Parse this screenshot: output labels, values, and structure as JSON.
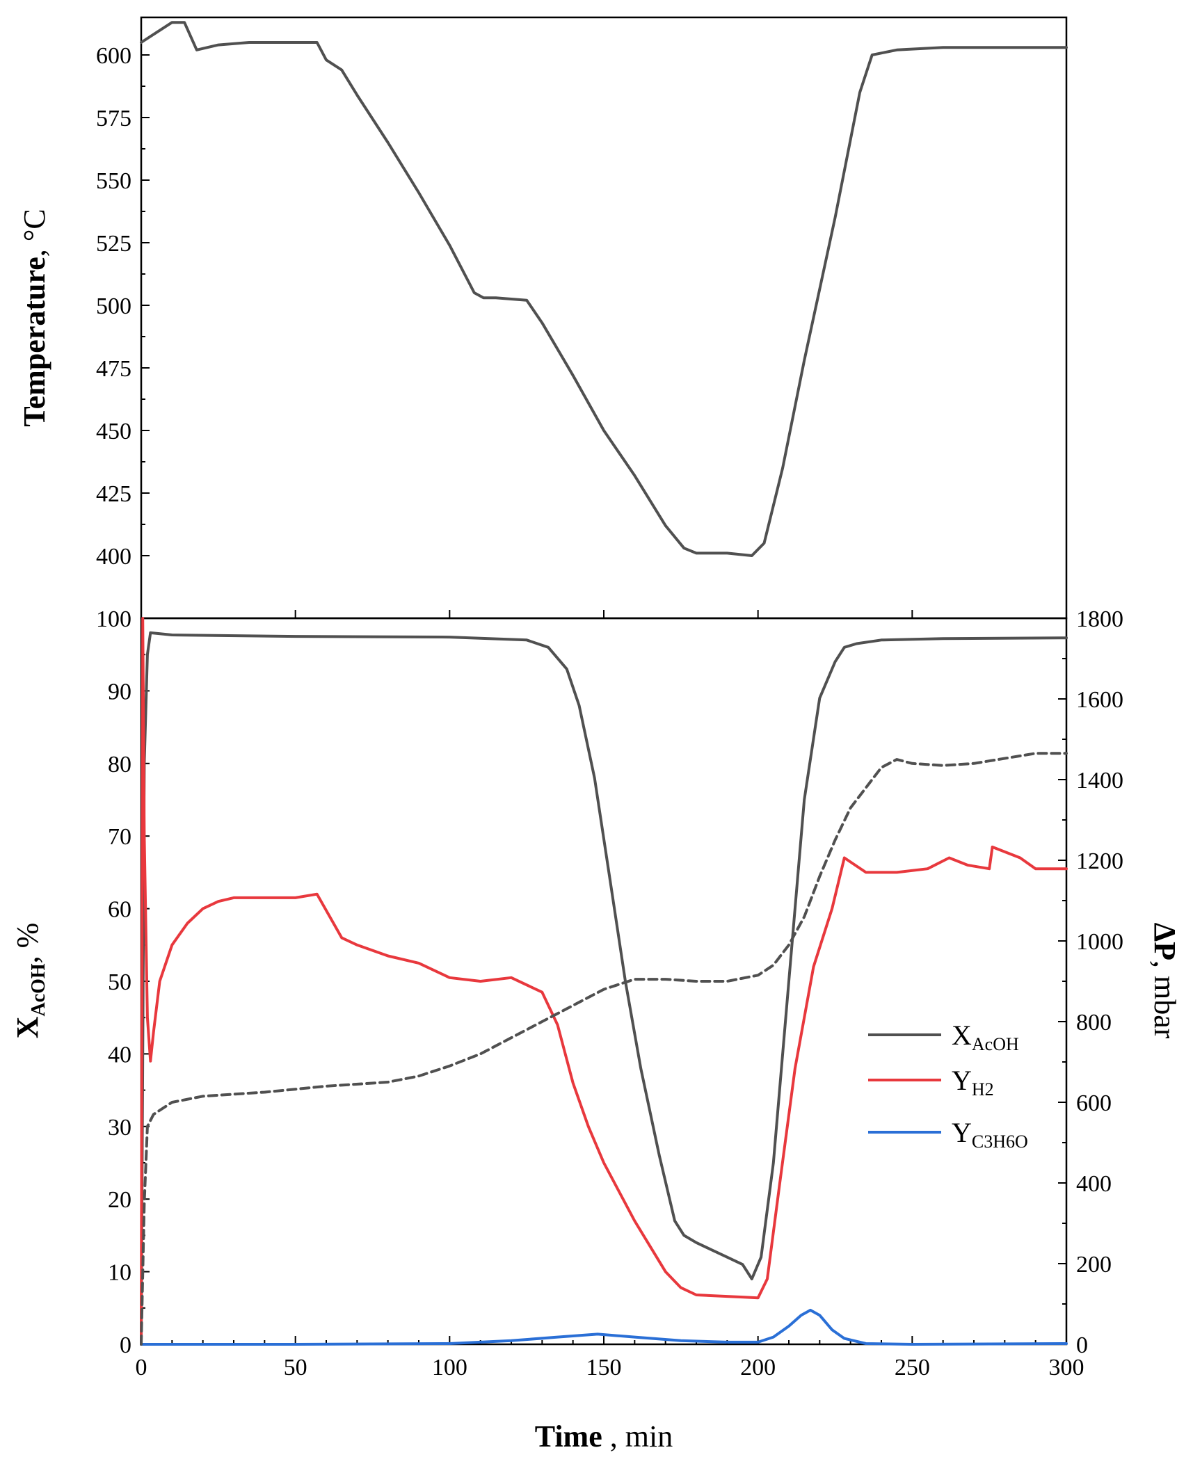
{
  "chart_data": [
    {
      "type": "line",
      "panel": "top",
      "ylabel": {
        "main": "Temperature",
        "unit": ", °C"
      },
      "xlim": [
        0,
        300
      ],
      "ylim": [
        375,
        615
      ],
      "yticks": [
        400,
        425,
        450,
        475,
        500,
        525,
        550,
        575,
        600
      ],
      "series": [
        {
          "color": "#505050",
          "style": "solid",
          "x": [
            0,
            5,
            10,
            14,
            18,
            25,
            35,
            57,
            60,
            65,
            70,
            80,
            90,
            100,
            108,
            111,
            115,
            125,
            130,
            140,
            150,
            160,
            170,
            176,
            180,
            190,
            198,
            202,
            208,
            215,
            225,
            233,
            237,
            245,
            260,
            280,
            300
          ],
          "y": [
            605,
            609,
            613,
            613,
            602,
            604,
            605,
            605,
            598,
            594,
            584,
            565,
            545,
            524,
            505,
            503,
            503,
            502,
            493,
            472,
            450,
            432,
            412,
            403,
            401,
            401,
            400,
            405,
            435,
            478,
            535,
            585,
            600,
            602,
            603,
            603,
            603
          ]
        }
      ]
    },
    {
      "type": "line",
      "panel": "bottom",
      "xlabel": {
        "main": "Time",
        "unit": " , min"
      },
      "ylabel_left": {
        "main": "X",
        "sub": "AcOH",
        "unit": ", %"
      },
      "ylabel_right": {
        "main": "ΔP",
        "unit": ", mbar"
      },
      "xlim": [
        0,
        300
      ],
      "xticks": [
        0,
        50,
        100,
        150,
        200,
        250,
        300
      ],
      "ylim_left": [
        0,
        100
      ],
      "yticks_left": [
        0,
        10,
        20,
        30,
        40,
        50,
        60,
        70,
        80,
        90,
        100
      ],
      "ylim_right": [
        0,
        1800
      ],
      "yticks_right": [
        0,
        200,
        400,
        600,
        800,
        1000,
        1200,
        1400,
        1600,
        1800
      ],
      "legend": {
        "position": "right-middle",
        "entries": [
          {
            "main": "X",
            "sub": "AcOH",
            "color": "#505050"
          },
          {
            "main": "Y",
            "sub": "H2",
            "color": "#e8383d"
          },
          {
            "main": "Y",
            "sub": "C3H6O",
            "color": "#2a6fd6"
          }
        ]
      },
      "series": [
        {
          "name": "XAcOH",
          "axis": "left",
          "color": "#505050",
          "style": "solid",
          "x": [
            0,
            1,
            2,
            3,
            10,
            50,
            100,
            125,
            132,
            138,
            142,
            147,
            152,
            157,
            162,
            168,
            173,
            176,
            180,
            185,
            190,
            195,
            198,
            201,
            205,
            210,
            215,
            220,
            225,
            228,
            232,
            240,
            260,
            300
          ],
          "y": [
            0,
            80,
            95,
            98,
            97.7,
            97.5,
            97.4,
            97,
            96,
            93,
            88,
            78,
            64,
            50,
            38,
            26,
            17,
            15,
            14,
            13,
            12,
            11,
            9,
            12,
            25,
            50,
            75,
            89,
            94,
            96,
            96.5,
            97,
            97.2,
            97.3
          ]
        },
        {
          "name": "YH2",
          "axis": "left",
          "color": "#e8383d",
          "style": "solid",
          "x": [
            0,
            0.5,
            1,
            2,
            3,
            4,
            6,
            10,
            15,
            20,
            25,
            30,
            40,
            50,
            57,
            65,
            70,
            80,
            90,
            100,
            110,
            120,
            130,
            135,
            140,
            145,
            150,
            160,
            170,
            175,
            180,
            190,
            195,
            200,
            203,
            207,
            212,
            218,
            224,
            228,
            235,
            245,
            255,
            262,
            268,
            275,
            276,
            285,
            290,
            300
          ],
          "y": [
            0,
            100,
            70,
            45,
            39,
            43,
            50,
            55,
            58,
            60,
            61,
            61.5,
            61.5,
            61.5,
            62,
            56,
            55,
            53.5,
            52.5,
            50.5,
            50,
            50.5,
            48.5,
            44,
            36,
            30,
            25,
            17,
            10,
            7.8,
            6.8,
            6.6,
            6.5,
            6.4,
            9,
            22,
            38,
            52,
            60,
            67,
            65,
            65,
            65.5,
            67,
            66,
            65.5,
            68.5,
            67,
            65.5,
            65.5
          ]
        },
        {
          "name": "YC3H6O",
          "axis": "left",
          "color": "#2a6fd6",
          "style": "solid",
          "x": [
            0,
            50,
            100,
            120,
            135,
            148,
            160,
            175,
            190,
            200,
            205,
            210,
            214,
            217,
            220,
            224,
            228,
            235,
            250,
            300
          ],
          "y": [
            0,
            0,
            0.1,
            0.5,
            1,
            1.4,
            1,
            0.5,
            0.3,
            0.3,
            1,
            2.5,
            4,
            4.7,
            4,
            2,
            0.8,
            0.1,
            0,
            0.1
          ]
        },
        {
          "name": "ΔP",
          "axis": "right",
          "color": "#505050",
          "style": "dashed",
          "x": [
            0,
            1,
            2,
            4,
            10,
            20,
            40,
            60,
            80,
            90,
            100,
            110,
            120,
            130,
            140,
            150,
            160,
            170,
            180,
            190,
            200,
            205,
            210,
            215,
            220,
            225,
            230,
            240,
            245,
            250,
            260,
            270,
            290,
            300
          ],
          "y": [
            0,
            350,
            540,
            570,
            600,
            615,
            625,
            640,
            650,
            665,
            690,
            720,
            760,
            800,
            840,
            880,
            905,
            905,
            900,
            900,
            915,
            940,
            990,
            1060,
            1160,
            1250,
            1330,
            1430,
            1450,
            1440,
            1435,
            1440,
            1465,
            1465
          ]
        }
      ]
    }
  ]
}
